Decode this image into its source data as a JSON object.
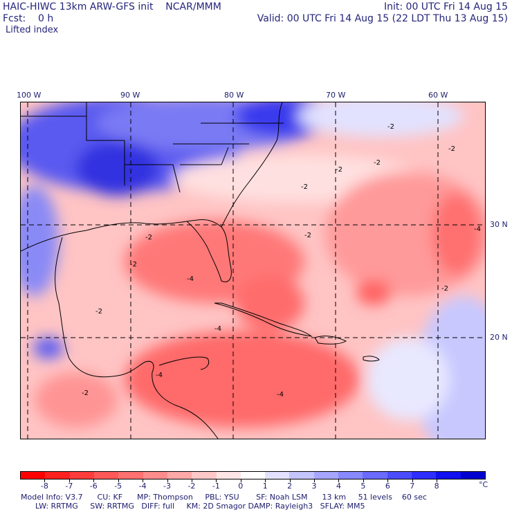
{
  "header": {
    "line1_left": "HAIC-HIWC 13km ARW-GFS init    NCAR/MMM",
    "line1_right": "Init: 00 UTC Fri 14 Aug 15",
    "line2_left": "Fcst:    0 h",
    "line2_right": "Valid: 00 UTC Fri 14 Aug 15 (22 LDT Thu 13 Aug 15)",
    "field_name": "Lifted index"
  },
  "map": {
    "lon_labels": [
      "100 W",
      "90 W",
      "80 W",
      "70 W",
      "60 W"
    ],
    "lat_labels": [
      "30 N",
      "20 N"
    ],
    "contour_labels": [
      "-2",
      "-4"
    ]
  },
  "colorbar": {
    "labels": [
      "-8",
      "-7",
      "-6",
      "-5",
      "-4",
      "-3",
      "-2",
      "-1",
      "0",
      "1",
      "2",
      "3",
      "4",
      "5",
      "6",
      "7",
      "8"
    ],
    "unit": "°C",
    "colors": [
      "#ff0000",
      "#ff2020",
      "#ff3c3c",
      "#ff5858",
      "#ff7070",
      "#ff8c8c",
      "#ffa8a8",
      "#ffc8c8",
      "#ffe6e6",
      "#ffffff",
      "#e2e2ff",
      "#c4c4ff",
      "#a6a6ff",
      "#8888ff",
      "#6a6aff",
      "#4c4cff",
      "#2e2eff",
      "#1010f0",
      "#0000d0"
    ]
  },
  "footer": {
    "line1": "Model Info: V3.7      CU: KF      MP: Thompson     PBL: YSU       SF: Noah LSM      13 km     51 levels    60 sec",
    "line2": "      LW: RRTMG     SW: RRTMG   DIFF: full     KM: 2D Smagor DAMP: Rayleigh3   SFLAY: MM5"
  }
}
